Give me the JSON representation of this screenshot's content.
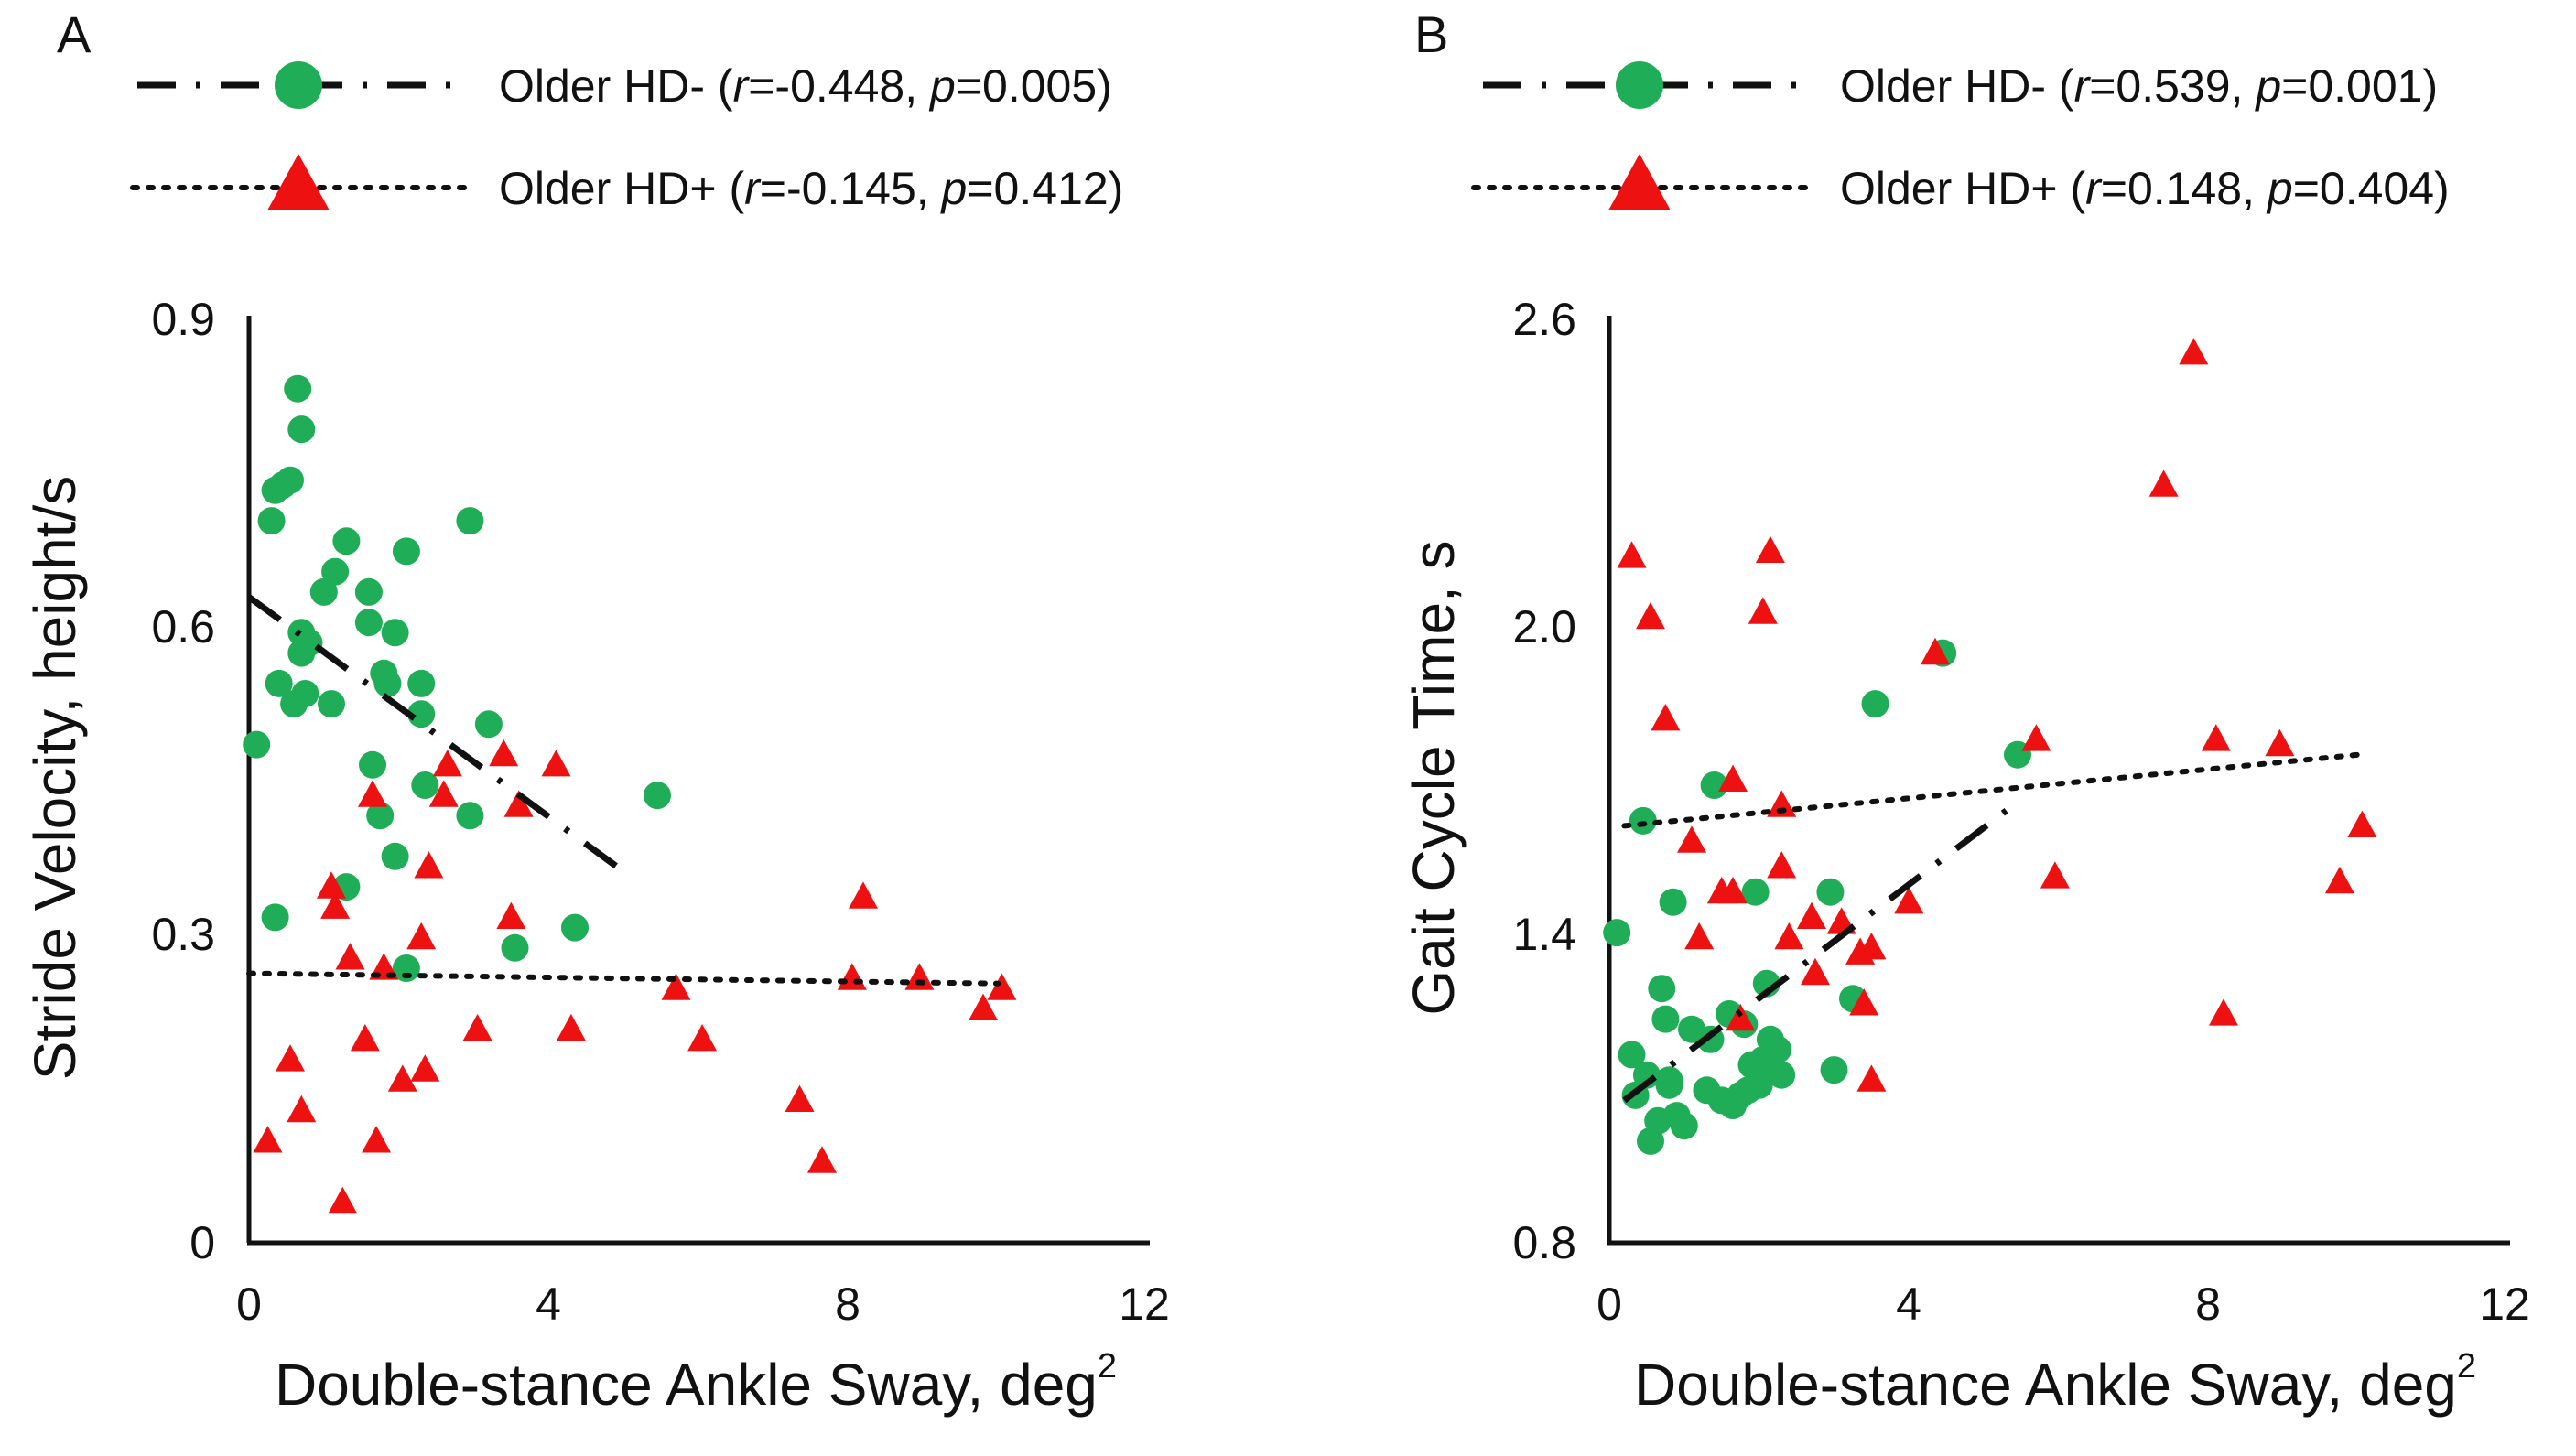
{
  "colors": {
    "hdneg": "#1fae57",
    "hdpos": "#ee1111",
    "axis": "#111111"
  },
  "chart_data": [
    {
      "type": "scatter",
      "panel": "A",
      "xlabel": "Double-stance Ankle Sway, deg",
      "xlabel_sup": "2",
      "ylabel": "Stride Velocity, height/s",
      "xlim": [
        0,
        12
      ],
      "ylim": [
        0,
        0.9
      ],
      "xticks": [
        0,
        4,
        8,
        12
      ],
      "yticks": [
        0,
        0.3,
        0.6,
        0.9
      ],
      "xtick_labels": [
        "0",
        "4",
        "8",
        "12"
      ],
      "ytick_labels": [
        "0",
        "0.3",
        "0.6",
        "0.9"
      ],
      "legend": [
        {
          "series": "Older HD-",
          "r_label": "r",
          "r_value": "=-0.448, ",
          "p_label": "p",
          "p_value": "=0.005)",
          "marker": "circle",
          "line": "dash-dot"
        },
        {
          "series": "Older HD+",
          "r_label": "r",
          "r_value": "=-0.145, ",
          "p_label": "p",
          "p_value": "=0.412)",
          "marker": "triangle",
          "line": "dotted"
        }
      ],
      "series": [
        {
          "name": "Older HD-",
          "marker": "circle",
          "trend": {
            "x": [
              0,
              5
            ],
            "y": [
              0.635,
              0.365
            ]
          },
          "points": [
            [
              0.1,
              0.49
            ],
            [
              0.3,
              0.71
            ],
            [
              0.35,
              0.74
            ],
            [
              0.45,
              0.745
            ],
            [
              0.55,
              0.75
            ],
            [
              0.65,
              0.84
            ],
            [
              0.7,
              0.8
            ],
            [
              0.35,
              0.32
            ],
            [
              0.4,
              0.55
            ],
            [
              0.6,
              0.53
            ],
            [
              0.7,
              0.6
            ],
            [
              0.7,
              0.58
            ],
            [
              0.75,
              0.54
            ],
            [
              0.8,
              0.59
            ],
            [
              1.0,
              0.64
            ],
            [
              1.1,
              0.53
            ],
            [
              1.15,
              0.66
            ],
            [
              1.3,
              0.69
            ],
            [
              1.6,
              0.64
            ],
            [
              1.6,
              0.61
            ],
            [
              1.65,
              0.47
            ],
            [
              1.75,
              0.42
            ],
            [
              1.8,
              0.56
            ],
            [
              1.85,
              0.55
            ],
            [
              1.95,
              0.38
            ],
            [
              1.95,
              0.6
            ],
            [
              2.1,
              0.68
            ],
            [
              2.1,
              0.27
            ],
            [
              2.3,
              0.52
            ],
            [
              2.3,
              0.55
            ],
            [
              2.35,
              0.45
            ],
            [
              2.95,
              0.71
            ],
            [
              2.95,
              0.42
            ],
            [
              3.2,
              0.51
            ],
            [
              3.55,
              0.29
            ],
            [
              4.35,
              0.31
            ],
            [
              5.45,
              0.44
            ],
            [
              1.3,
              0.35
            ]
          ]
        },
        {
          "name": "Older HD+",
          "marker": "triangle",
          "trend": {
            "x": [
              0,
              10
            ],
            "y": [
              0.265,
              0.255
            ]
          },
          "points": [
            [
              0.25,
              0.1
            ],
            [
              0.55,
              0.18
            ],
            [
              0.7,
              0.13
            ],
            [
              1.1,
              0.35
            ],
            [
              1.15,
              0.33
            ],
            [
              1.25,
              0.04
            ],
            [
              1.35,
              0.28
            ],
            [
              1.55,
              0.2
            ],
            [
              1.65,
              0.44
            ],
            [
              1.7,
              0.1
            ],
            [
              1.8,
              0.27
            ],
            [
              2.05,
              0.16
            ],
            [
              2.3,
              0.3
            ],
            [
              2.35,
              0.17
            ],
            [
              2.4,
              0.37
            ],
            [
              2.6,
              0.44
            ],
            [
              2.65,
              0.47
            ],
            [
              3.05,
              0.21
            ],
            [
              3.4,
              0.48
            ],
            [
              3.5,
              0.32
            ],
            [
              3.6,
              0.43
            ],
            [
              4.1,
              0.47
            ],
            [
              4.3,
              0.21
            ],
            [
              5.7,
              0.25
            ],
            [
              6.05,
              0.2
            ],
            [
              7.35,
              0.14
            ],
            [
              7.65,
              0.08
            ],
            [
              8.05,
              0.26
            ],
            [
              8.2,
              0.34
            ],
            [
              8.95,
              0.26
            ],
            [
              9.8,
              0.23
            ],
            [
              10.05,
              0.25
            ]
          ]
        }
      ]
    },
    {
      "type": "scatter",
      "panel": "B",
      "xlabel": "Double-stance Ankle Sway, deg",
      "xlabel_sup": "2",
      "ylabel": "Gait Cycle Time, s",
      "xlim": [
        0,
        12
      ],
      "ylim": [
        0.8,
        2.6
      ],
      "xticks": [
        0,
        4,
        8,
        12
      ],
      "yticks": [
        0.8,
        1.4,
        2.0,
        2.6
      ],
      "xtick_labels": [
        "0",
        "4",
        "8",
        "12"
      ],
      "ytick_labels": [
        "0.8",
        "1.4",
        "2.0",
        "2.6"
      ],
      "legend": [
        {
          "series": "Older HD-",
          "r_label": "r",
          "r_value": "=0.539, ",
          "p_label": "p",
          "p_value": "=0.001)",
          "marker": "circle",
          "line": "dash-dot"
        },
        {
          "series": "Older HD+",
          "r_label": "r",
          "r_value": "=0.148, ",
          "p_label": "p",
          "p_value": "=0.404)",
          "marker": "triangle",
          "line": "dotted"
        }
      ],
      "series": [
        {
          "name": "Older HD-",
          "marker": "circle",
          "trend": {
            "x": [
              0.2,
              5.3
            ],
            "y": [
              1.08,
              1.65
            ]
          },
          "points": [
            [
              0.1,
              1.41
            ],
            [
              0.3,
              1.17
            ],
            [
              0.35,
              1.09
            ],
            [
              0.45,
              1.63
            ],
            [
              0.5,
              1.13
            ],
            [
              0.55,
              1.0
            ],
            [
              0.65,
              1.04
            ],
            [
              0.7,
              1.3
            ],
            [
              0.75,
              1.24
            ],
            [
              0.8,
              1.11
            ],
            [
              0.8,
              1.12
            ],
            [
              0.85,
              1.47
            ],
            [
              0.9,
              1.05
            ],
            [
              1.0,
              1.03
            ],
            [
              1.1,
              1.22
            ],
            [
              1.3,
              1.1
            ],
            [
              1.35,
              1.2
            ],
            [
              1.4,
              1.7
            ],
            [
              1.5,
              1.08
            ],
            [
              1.6,
              1.25
            ],
            [
              1.65,
              1.07
            ],
            [
              1.75,
              1.09
            ],
            [
              1.8,
              1.23
            ],
            [
              1.85,
              1.1
            ],
            [
              1.9,
              1.15
            ],
            [
              1.95,
              1.49
            ],
            [
              2.0,
              1.11
            ],
            [
              2.05,
              1.16
            ],
            [
              2.1,
              1.31
            ],
            [
              2.15,
              1.2
            ],
            [
              2.2,
              1.14
            ],
            [
              2.25,
              1.18
            ],
            [
              2.3,
              1.13
            ],
            [
              2.95,
              1.49
            ],
            [
              3.0,
              1.14
            ],
            [
              3.25,
              1.28
            ],
            [
              3.55,
              1.86
            ],
            [
              4.45,
              1.96
            ],
            [
              5.45,
              1.76
            ]
          ]
        },
        {
          "name": "Older HD+",
          "marker": "triangle",
          "trend": {
            "x": [
              0.2,
              10
            ],
            "y": [
              1.62,
              1.76
            ]
          },
          "points": [
            [
              0.3,
              2.15
            ],
            [
              0.55,
              2.03
            ],
            [
              0.75,
              1.83
            ],
            [
              1.1,
              1.59
            ],
            [
              1.2,
              1.4
            ],
            [
              1.5,
              1.49
            ],
            [
              1.65,
              1.49
            ],
            [
              1.65,
              1.71
            ],
            [
              1.75,
              1.24
            ],
            [
              2.05,
              2.04
            ],
            [
              2.15,
              2.16
            ],
            [
              2.3,
              1.66
            ],
            [
              2.3,
              1.54
            ],
            [
              2.4,
              1.4
            ],
            [
              2.7,
              1.44
            ],
            [
              2.75,
              1.33
            ],
            [
              3.1,
              1.43
            ],
            [
              3.35,
              1.37
            ],
            [
              3.4,
              1.27
            ],
            [
              3.5,
              1.38
            ],
            [
              3.5,
              1.12
            ],
            [
              4.0,
              1.47
            ],
            [
              4.35,
              1.96
            ],
            [
              5.7,
              1.79
            ],
            [
              5.95,
              1.52
            ],
            [
              7.4,
              2.29
            ],
            [
              7.8,
              2.55
            ],
            [
              8.1,
              1.79
            ],
            [
              8.2,
              1.25
            ],
            [
              8.95,
              1.78
            ],
            [
              9.75,
              1.51
            ],
            [
              10.05,
              1.62
            ]
          ]
        }
      ]
    }
  ]
}
